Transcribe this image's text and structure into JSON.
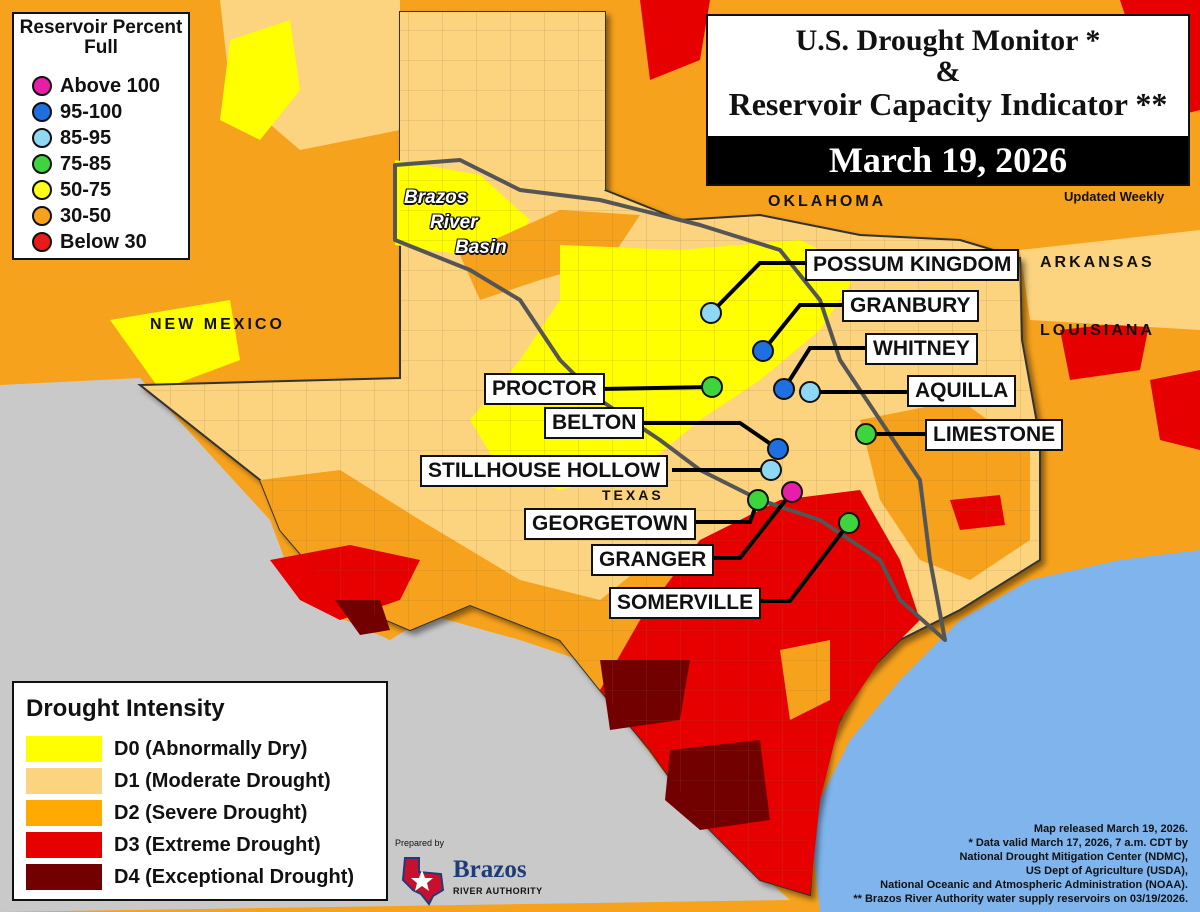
{
  "title": {
    "line1": "U.S. Drought Monitor *",
    "amp": "&",
    "line2": "Reservoir Capacity Indicator **",
    "date": "March 19, 2026",
    "updated": "Updated Weekly"
  },
  "reservoir_legend": {
    "title": "Reservoir Percent Full",
    "items": [
      {
        "label": "Above 100",
        "color": "#e81ea8"
      },
      {
        "label": "95-100",
        "color": "#1f6fe0"
      },
      {
        "label": "85-95",
        "color": "#8fd8f4"
      },
      {
        "label": "75-85",
        "color": "#3ed43e"
      },
      {
        "label": "50-75",
        "color": "#ffff1a"
      },
      {
        "label": "30-50",
        "color": "#f7a21c"
      },
      {
        "label": "Below 30",
        "color": "#e81a1a"
      }
    ]
  },
  "drought_legend": {
    "title": "Drought Intensity",
    "items": [
      {
        "label": "D0 (Abnormally Dry)",
        "color": "#ffff00"
      },
      {
        "label": "D1 (Moderate Drought)",
        "color": "#fcd37f"
      },
      {
        "label": "D2 (Severe Drought)",
        "color": "#ffaa00"
      },
      {
        "label": "D3 (Extreme Drought)",
        "color": "#e60000"
      },
      {
        "label": "D4 (Exceptional Drought)",
        "color": "#730000"
      }
    ]
  },
  "states": {
    "oklahoma": "OKLAHOMA",
    "arkansas": "ARKANSAS",
    "louisiana": "LOUISIANA",
    "new_mexico": "NEW MEXICO",
    "texas": "TEXAS"
  },
  "basin": {
    "line1": "Brazos",
    "line2": "River",
    "line3": "Basin"
  },
  "reservoirs": [
    {
      "name": "POSSUM KINGDOM",
      "status": "85-95"
    },
    {
      "name": "GRANBURY",
      "status": "95-100"
    },
    {
      "name": "WHITNEY",
      "status": "95-100"
    },
    {
      "name": "AQUILLA",
      "status": "85-95"
    },
    {
      "name": "PROCTOR",
      "status": "75-85"
    },
    {
      "name": "LIMESTONE",
      "status": "75-85"
    },
    {
      "name": "BELTON",
      "status": "95-100"
    },
    {
      "name": "STILLHOUSE HOLLOW",
      "status": "85-95"
    },
    {
      "name": "GEORGETOWN",
      "status": "75-85"
    },
    {
      "name": "GRANGER",
      "status": "Above 100"
    },
    {
      "name": "SOMERVILLE",
      "status": "75-85"
    }
  ],
  "credits": {
    "line1": "Map released March 19, 2026.",
    "line2": "* Data valid March 17, 2026, 7 a.m. CDT by",
    "line3": "National Drought Mitigation Center (NDMC),",
    "line4": "US Dept of Agriculture (USDA),",
    "line5": "National Oceanic and Atmospheric Administration (NOAA).",
    "line6": "** Brazos River Authority water supply reservoirs on 03/19/2026."
  },
  "logo": {
    "prepared": "Prepared by",
    "name": "Brazos",
    "sub": "RIVER AUTHORITY"
  }
}
